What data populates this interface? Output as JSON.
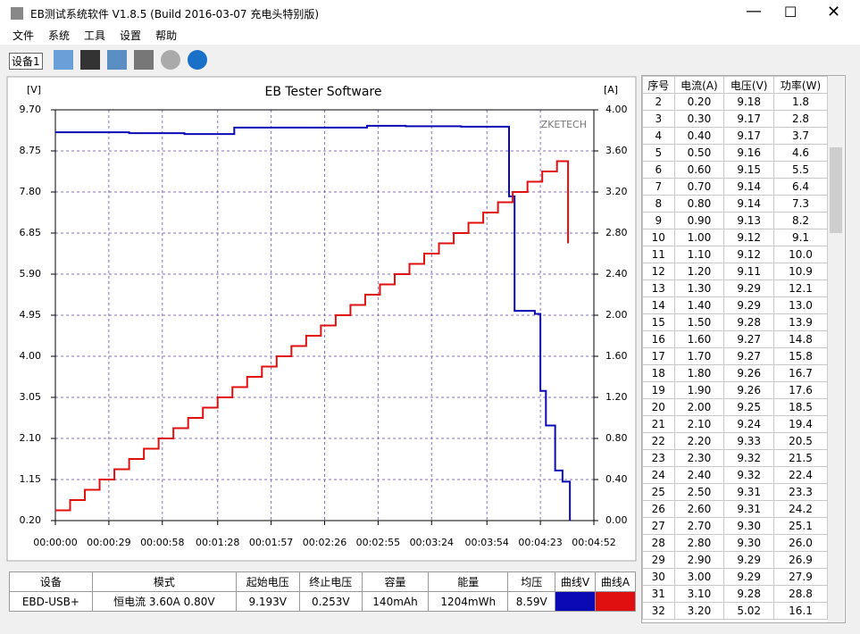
{
  "window": {
    "title": "EB测试系统软件 V1.8.5 (Build 2016-03-07 充电头特别版)"
  },
  "menu": [
    "文件",
    "系统",
    "工具",
    "设置",
    "帮助"
  ],
  "toolbar": {
    "device_tab": "设备1"
  },
  "chart_data": {
    "type": "line",
    "title": "EB Tester Software",
    "y_label": "[V]",
    "y2_label": "[A]",
    "watermark": "ZKETECH",
    "step": true,
    "grid": true,
    "xlim": [
      0,
      292
    ],
    "xticks": [
      {
        "value": 0,
        "label": "00:00:00"
      },
      {
        "value": 29,
        "label": "00:00:29"
      },
      {
        "value": 58,
        "label": "00:00:58"
      },
      {
        "value": 88,
        "label": "00:01:28"
      },
      {
        "value": 117,
        "label": "00:01:57"
      },
      {
        "value": 146,
        "label": "00:02:26"
      },
      {
        "value": 175,
        "label": "00:02:55"
      },
      {
        "value": 204,
        "label": "00:03:24"
      },
      {
        "value": 234,
        "label": "00:03:54"
      },
      {
        "value": 263,
        "label": "00:04:23"
      },
      {
        "value": 292,
        "label": "00:04:52"
      }
    ],
    "ylim": [
      0.2,
      9.7
    ],
    "yticks": [
      {
        "value": 0.2,
        "label": "0.20"
      },
      {
        "value": 1.15,
        "label": "1.15"
      },
      {
        "value": 2.1,
        "label": "2.10"
      },
      {
        "value": 3.05,
        "label": "3.05"
      },
      {
        "value": 4.0,
        "label": "4.00"
      },
      {
        "value": 4.95,
        "label": "4.95"
      },
      {
        "value": 5.9,
        "label": "5.90"
      },
      {
        "value": 6.85,
        "label": "6.85"
      },
      {
        "value": 7.8,
        "label": "7.80"
      },
      {
        "value": 8.75,
        "label": "8.75"
      },
      {
        "value": 9.7,
        "label": "9.70"
      }
    ],
    "y2lim": [
      0,
      4
    ],
    "y2ticks": [
      {
        "value": 0,
        "label": "0.00"
      },
      {
        "value": 0.4,
        "label": "0.40"
      },
      {
        "value": 0.8,
        "label": "0.80"
      },
      {
        "value": 1.2,
        "label": "1.20"
      },
      {
        "value": 1.6,
        "label": "1.60"
      },
      {
        "value": 2.0,
        "label": "2.00"
      },
      {
        "value": 2.4,
        "label": "2.40"
      },
      {
        "value": 2.8,
        "label": "2.80"
      },
      {
        "value": 3.2,
        "label": "3.20"
      },
      {
        "value": 3.6,
        "label": "3.60"
      },
      {
        "value": 4.0,
        "label": "4.00"
      }
    ],
    "series": [
      {
        "name": "曲线V",
        "color": "#0a0ab4",
        "x": [
          0,
          40,
          70,
          97,
          169,
          190,
          220,
          246,
          249,
          260,
          263,
          266,
          271,
          275,
          279
        ],
        "values": [
          9.18,
          9.16,
          9.14,
          9.29,
          9.33,
          9.32,
          9.31,
          7.7,
          5.05,
          4.98,
          3.2,
          2.4,
          1.36,
          1.1,
          0.2
        ]
      },
      {
        "name": "曲线A",
        "color": "#e01010",
        "axis": "y2",
        "x": [
          0,
          8,
          16,
          24,
          32,
          40,
          48,
          56,
          64,
          72,
          80,
          88,
          96,
          104,
          112,
          120,
          128,
          136,
          144,
          152,
          160,
          168,
          176,
          184,
          192,
          200,
          208,
          216,
          224,
          232,
          240,
          248,
          256,
          264,
          272,
          278
        ],
        "values": [
          0.1,
          0.2,
          0.3,
          0.4,
          0.5,
          0.6,
          0.7,
          0.8,
          0.9,
          1.0,
          1.1,
          1.2,
          1.3,
          1.4,
          1.5,
          1.6,
          1.7,
          1.8,
          1.9,
          2.0,
          2.1,
          2.2,
          2.3,
          2.4,
          2.5,
          2.6,
          2.7,
          2.8,
          2.9,
          3.0,
          3.1,
          3.2,
          3.3,
          3.4,
          3.5,
          2.7
        ]
      }
    ]
  },
  "table": {
    "columns": [
      "序号",
      "电流(A)",
      "电压(V)",
      "功率(W)"
    ],
    "rows": [
      [
        "2",
        "0.20",
        "9.18",
        "1.8"
      ],
      [
        "3",
        "0.30",
        "9.17",
        "2.8"
      ],
      [
        "4",
        "0.40",
        "9.17",
        "3.7"
      ],
      [
        "5",
        "0.50",
        "9.16",
        "4.6"
      ],
      [
        "6",
        "0.60",
        "9.15",
        "5.5"
      ],
      [
        "7",
        "0.70",
        "9.14",
        "6.4"
      ],
      [
        "8",
        "0.80",
        "9.14",
        "7.3"
      ],
      [
        "9",
        "0.90",
        "9.13",
        "8.2"
      ],
      [
        "10",
        "1.00",
        "9.12",
        "9.1"
      ],
      [
        "11",
        "1.10",
        "9.12",
        "10.0"
      ],
      [
        "12",
        "1.20",
        "9.11",
        "10.9"
      ],
      [
        "13",
        "1.30",
        "9.29",
        "12.1"
      ],
      [
        "14",
        "1.40",
        "9.29",
        "13.0"
      ],
      [
        "15",
        "1.50",
        "9.28",
        "13.9"
      ],
      [
        "16",
        "1.60",
        "9.27",
        "14.8"
      ],
      [
        "17",
        "1.70",
        "9.27",
        "15.8"
      ],
      [
        "18",
        "1.80",
        "9.26",
        "16.7"
      ],
      [
        "19",
        "1.90",
        "9.26",
        "17.6"
      ],
      [
        "20",
        "2.00",
        "9.25",
        "18.5"
      ],
      [
        "21",
        "2.10",
        "9.24",
        "19.4"
      ],
      [
        "22",
        "2.20",
        "9.33",
        "20.5"
      ],
      [
        "23",
        "2.30",
        "9.32",
        "21.5"
      ],
      [
        "24",
        "2.40",
        "9.32",
        "22.4"
      ],
      [
        "25",
        "2.50",
        "9.31",
        "23.3"
      ],
      [
        "26",
        "2.60",
        "9.31",
        "24.2"
      ],
      [
        "27",
        "2.70",
        "9.30",
        "25.1"
      ],
      [
        "28",
        "2.80",
        "9.30",
        "26.0"
      ],
      [
        "29",
        "2.90",
        "9.29",
        "26.9"
      ],
      [
        "30",
        "3.00",
        "9.29",
        "27.9"
      ],
      [
        "31",
        "3.10",
        "9.28",
        "28.8"
      ],
      [
        "32",
        "3.20",
        "5.02",
        "16.1"
      ]
    ]
  },
  "summary": {
    "headers": [
      "设备",
      "模式",
      "起始电压",
      "终止电压",
      "容量",
      "能量",
      "均压",
      "曲线V",
      "曲线A"
    ],
    "values": [
      "EBD-USB+",
      "恒电流  3.60A  0.80V",
      "9.193V",
      "0.253V",
      "140mAh",
      "1204mWh",
      "8.59V"
    ]
  }
}
